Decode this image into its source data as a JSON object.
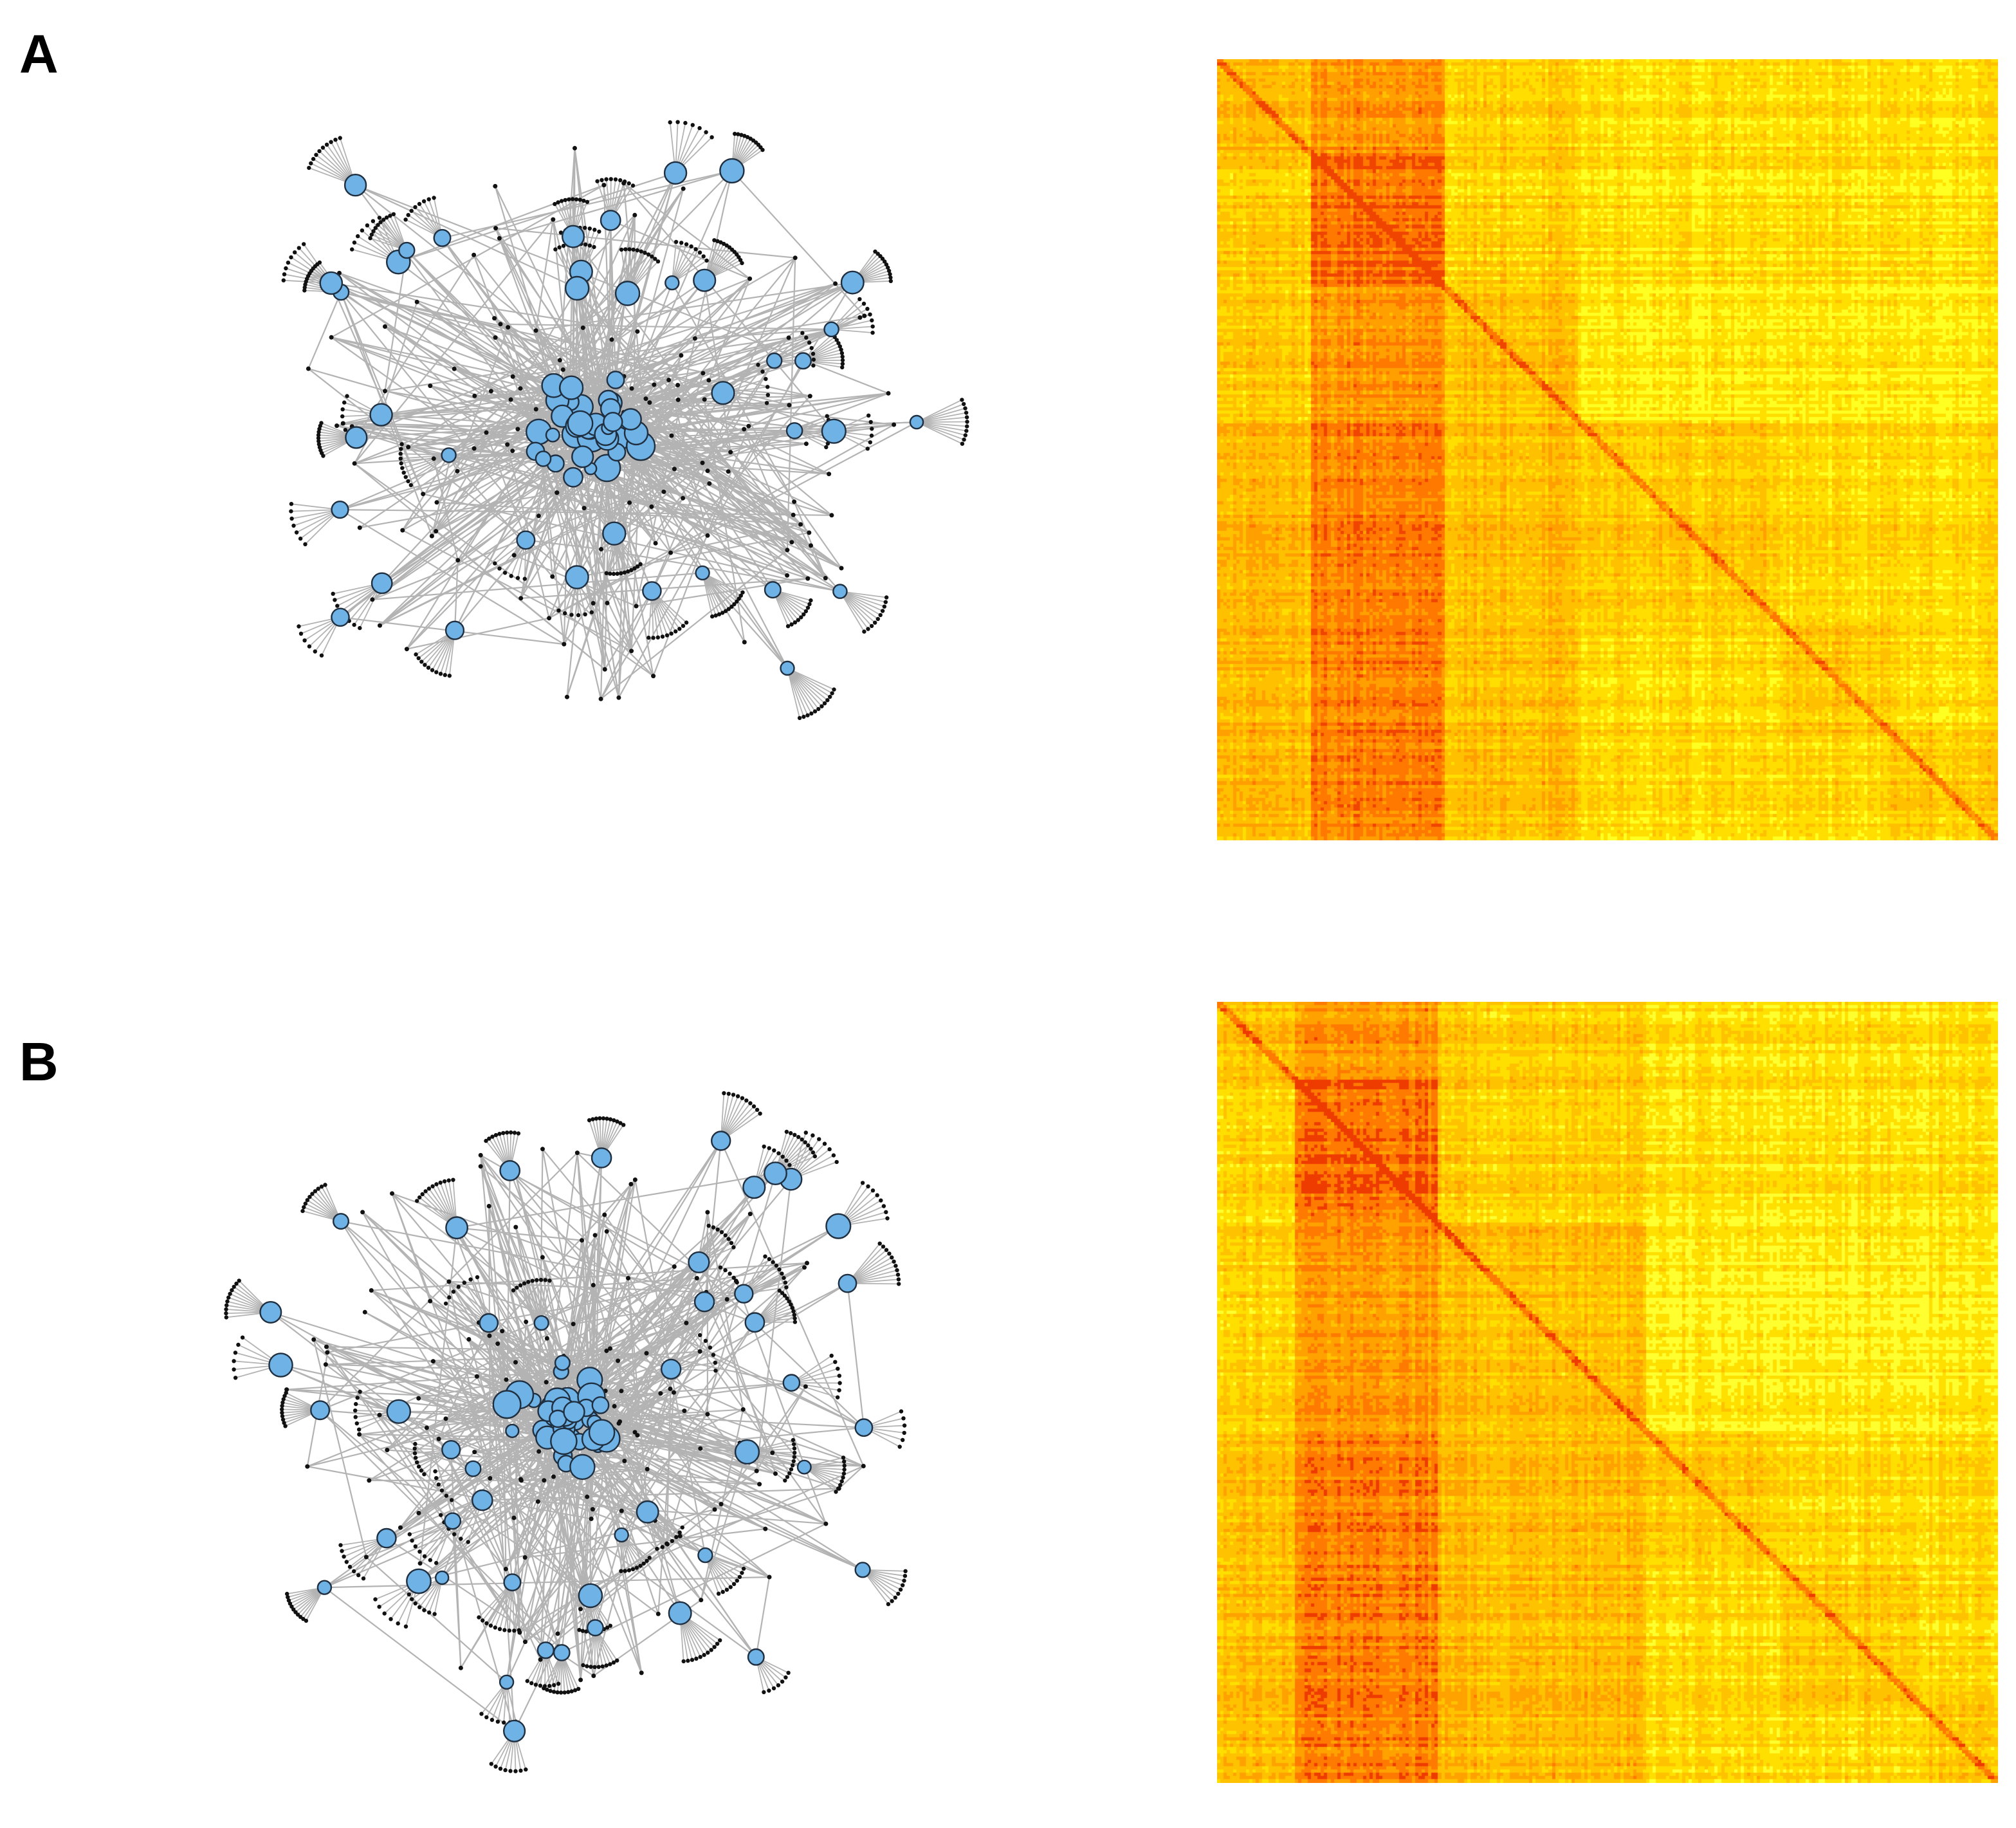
{
  "panels": [
    {
      "id": "A",
      "label": "A",
      "network": {
        "hub_count": 78,
        "leaf_fan_range": [
          6,
          12
        ],
        "node_color": "#6eb2e6",
        "node_stroke": "#1f2f40",
        "edge_color": "#b3b3b3",
        "leaf_color": "#111111"
      },
      "heatmap": {
        "colormap": [
          "#ffff22",
          "#ffde00",
          "#ffc000",
          "#ff9f00",
          "#ff7800",
          "#f04500"
        ],
        "block_boundaries": [
          0.12,
          0.29,
          0.46,
          0.72,
          0.86
        ]
      }
    },
    {
      "id": "B",
      "label": "B",
      "network": {
        "hub_count": 86,
        "leaf_fan_range": [
          6,
          11
        ],
        "node_color": "#6eb2e6",
        "node_stroke": "#1f2f40",
        "edge_color": "#b3b3b3",
        "leaf_color": "#111111"
      },
      "heatmap": {
        "colormap": [
          "#ffff30",
          "#ffdf00",
          "#ffc200",
          "#ffa200",
          "#ff7a00",
          "#ee3c00"
        ],
        "block_boundaries": [
          0.1,
          0.28,
          0.55,
          0.72,
          0.9
        ]
      }
    }
  ]
}
